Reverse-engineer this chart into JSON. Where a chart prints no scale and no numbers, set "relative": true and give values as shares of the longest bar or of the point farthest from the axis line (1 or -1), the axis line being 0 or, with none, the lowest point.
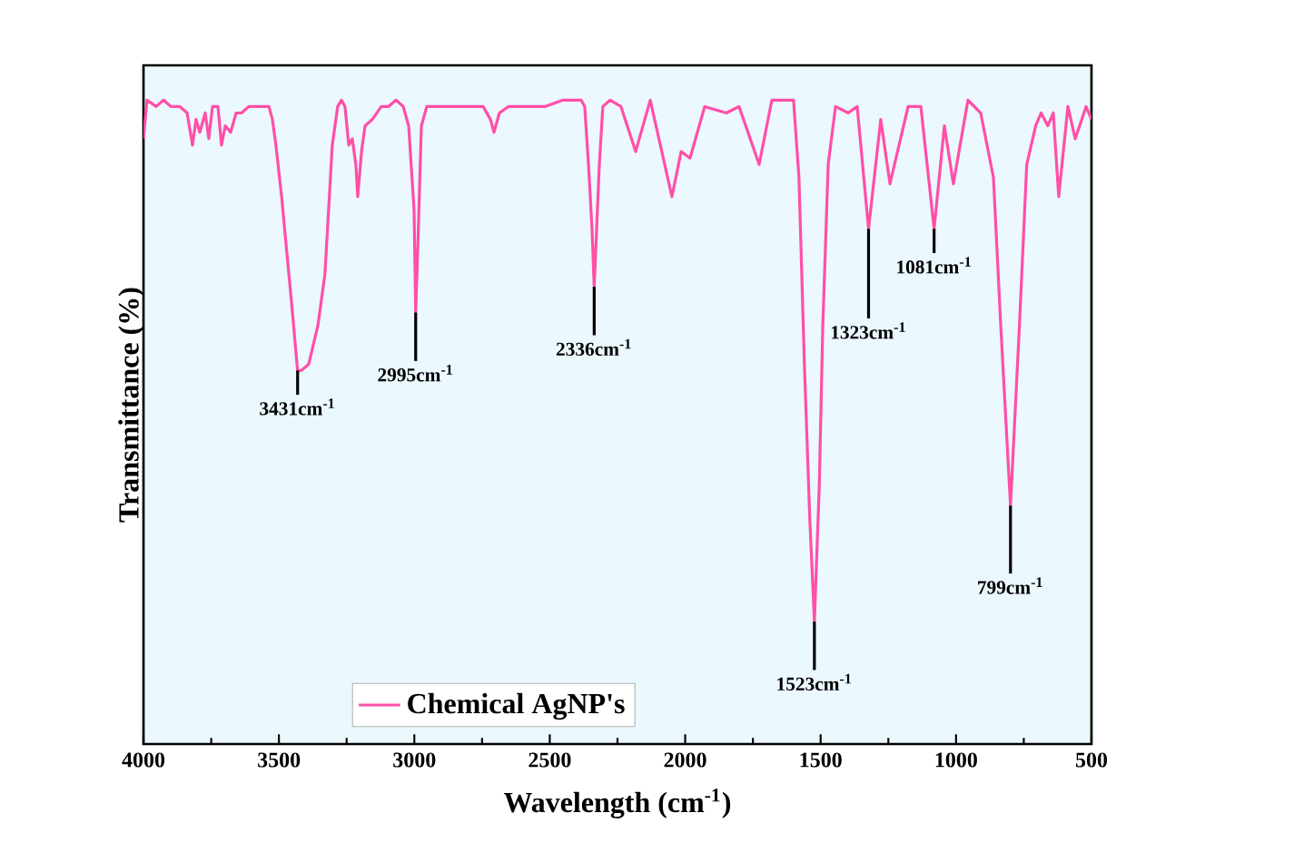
{
  "chart_data": {
    "type": "line",
    "relative": true,
    "xlabel": "Wavelength (cm$^{-1}$)",
    "ylabel": "Transmittance (%)",
    "xlim": [
      4000,
      500
    ],
    "xticks": [
      4000,
      3500,
      3000,
      2500,
      2000,
      1500,
      1000,
      500
    ],
    "legend": "bottom",
    "grid": false,
    "marker": "none",
    "line_style": "solid",
    "x": [
      4000,
      3987,
      3953,
      3926,
      3899,
      3866,
      3839,
      3819,
      3806,
      3792,
      3772,
      3759,
      3745,
      3725,
      3712,
      3698,
      3678,
      3658,
      3638,
      3611,
      3591,
      3564,
      3537,
      3524,
      3511,
      3490,
      3470,
      3450,
      3431,
      3417,
      3390,
      3356,
      3330,
      3303,
      3283,
      3269,
      3256,
      3242,
      3229,
      3216,
      3209,
      3195,
      3182,
      3155,
      3122,
      3095,
      3068,
      3041,
      3021,
      3001,
      2995,
      2988,
      2974,
      2954,
      2920,
      2853,
      2786,
      2746,
      2719,
      2706,
      2686,
      2652,
      2585,
      2518,
      2451,
      2384,
      2371,
      2357,
      2344,
      2336,
      2317,
      2304,
      2277,
      2237,
      2183,
      2129,
      2049,
      2015,
      1982,
      1928,
      1848,
      1801,
      1727,
      1680,
      1600,
      1580,
      1560,
      1540,
      1523,
      1505,
      1492,
      1472,
      1445,
      1398,
      1365,
      1323,
      1278,
      1244,
      1177,
      1130,
      1081,
      1043,
      1010,
      956,
      909,
      862,
      835,
      799,
      766,
      739,
      706,
      686,
      661,
      641,
      621,
      587,
      560,
      520,
      500
    ],
    "series": [
      {
        "name": "Chemical AgNP's",
        "color": "#ff4fa7",
        "values": [
          0.94,
          1.0,
          0.99,
          1.0,
          0.99,
          0.99,
          0.98,
          0.93,
          0.97,
          0.95,
          0.98,
          0.94,
          0.99,
          0.99,
          0.93,
          0.96,
          0.95,
          0.98,
          0.98,
          0.99,
          0.99,
          0.99,
          0.99,
          0.97,
          0.93,
          0.85,
          0.76,
          0.67,
          0.58,
          0.58,
          0.59,
          0.65,
          0.73,
          0.93,
          0.99,
          1.0,
          0.99,
          0.93,
          0.94,
          0.9,
          0.85,
          0.92,
          0.96,
          0.97,
          0.99,
          0.99,
          1.0,
          0.99,
          0.96,
          0.83,
          0.67,
          0.76,
          0.96,
          0.99,
          0.99,
          0.99,
          0.99,
          0.99,
          0.97,
          0.95,
          0.98,
          0.99,
          0.99,
          0.99,
          1.0,
          1.0,
          0.99,
          0.9,
          0.8,
          0.71,
          0.9,
          0.99,
          1.0,
          0.99,
          0.92,
          1.0,
          0.85,
          0.92,
          0.91,
          0.99,
          0.98,
          0.99,
          0.9,
          1.0,
          1.0,
          0.88,
          0.59,
          0.35,
          0.19,
          0.4,
          0.65,
          0.9,
          0.99,
          0.98,
          0.99,
          0.8,
          0.97,
          0.87,
          0.99,
          0.99,
          0.8,
          0.96,
          0.87,
          1.0,
          0.98,
          0.88,
          0.65,
          0.37,
          0.65,
          0.9,
          0.96,
          0.98,
          0.96,
          0.98,
          0.85,
          0.99,
          0.94,
          0.99,
          0.97
        ]
      }
    ],
    "annotations": [
      {
        "text": "3431cm$^{-1}$",
        "x": 3431,
        "y": 0.58
      },
      {
        "text": "2995cm$^{-1}$",
        "x": 2995,
        "y": 0.67
      },
      {
        "text": "2336cm$^{-1}$",
        "x": 2336,
        "y": 0.71
      },
      {
        "text": "1523cm$^{-1}$",
        "x": 1523,
        "y": 0.19
      },
      {
        "text": "1323cm$^{-1}$",
        "x": 1323,
        "y": 0.8
      },
      {
        "text": "1081cm$^{-1}$",
        "x": 1081,
        "y": 0.8
      },
      {
        "text": "799cm$^{-1}$",
        "x": 799,
        "y": 0.37
      }
    ]
  }
}
